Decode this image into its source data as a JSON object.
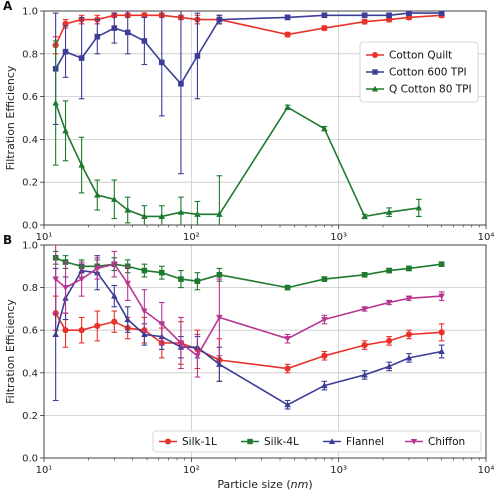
{
  "figure": {
    "xlabel_prefix": "Particle size (",
    "xlabel_unit": "nm",
    "xlabel_suffix": ")"
  },
  "chart_data": [
    {
      "panel": "A",
      "type": "line",
      "ylabel": "Filtration Efficiency",
      "xscale": "log",
      "xlim": [
        10,
        10000
      ],
      "ylim": [
        0,
        1.0
      ],
      "x_ticks": [
        10,
        100,
        1000,
        10000
      ],
      "x_tick_labels": [
        "10¹",
        "10²",
        "10³",
        "10⁴"
      ],
      "y_ticks": [
        0.0,
        0.2,
        0.4,
        0.6,
        0.8,
        1.0
      ],
      "y_tick_labels": [
        "0.0",
        "0.2",
        "0.4",
        "0.6",
        "0.8",
        "1.0"
      ],
      "grid": true,
      "legend_position": "upper-right",
      "series": [
        {
          "name": "Cotton Quilt",
          "color": "#e8322a",
          "marker": "circle",
          "x": [
            12,
            14,
            18,
            23,
            30,
            37,
            48,
            63,
            85,
            110,
            155,
            450,
            800,
            1500,
            2200,
            3000,
            5000
          ],
          "y": [
            0.84,
            0.94,
            0.96,
            0.96,
            0.98,
            0.98,
            0.98,
            0.98,
            0.97,
            0.96,
            0.96,
            0.89,
            0.92,
            0.95,
            0.96,
            0.97,
            0.98
          ],
          "err": [
            0.04,
            0.02,
            0.02,
            0.02,
            0.01,
            0.01,
            0.01,
            0.01,
            0.01,
            0.02,
            0.02,
            0.01,
            0.01,
            0.01,
            0.01,
            0.01,
            0.01
          ]
        },
        {
          "name": "Cotton 600 TPI",
          "color": "#3b3d96",
          "marker": "square",
          "x": [
            12,
            14,
            18,
            23,
            30,
            37,
            48,
            63,
            85,
            110,
            155,
            450,
            800,
            1500,
            2200,
            3000,
            5000
          ],
          "y": [
            0.73,
            0.81,
            0.78,
            0.88,
            0.92,
            0.9,
            0.86,
            0.76,
            0.66,
            0.79,
            0.96,
            0.97,
            0.98,
            0.98,
            0.98,
            0.99,
            0.99
          ],
          "err": [
            0.26,
            0.12,
            0.19,
            0.08,
            0.07,
            0.1,
            0.11,
            0.25,
            0.42,
            0.2,
            0.02,
            0.01,
            0.01,
            0.01,
            0.01,
            0.01,
            0.01
          ]
        },
        {
          "name": "Q Cotton 80 TPI",
          "color": "#1d7a2e",
          "marker": "triangle-up",
          "x": [
            12,
            14,
            18,
            23,
            30,
            37,
            48,
            63,
            85,
            110,
            155,
            450,
            800,
            1500,
            2200,
            3500
          ],
          "y": [
            0.57,
            0.44,
            0.28,
            0.14,
            0.12,
            0.07,
            0.04,
            0.04,
            0.06,
            0.05,
            0.05,
            0.55,
            0.45,
            0.04,
            0.06,
            0.08
          ],
          "err": [
            0.29,
            0.14,
            0.13,
            0.07,
            0.09,
            0.06,
            0.05,
            0.05,
            0.07,
            0.06,
            0.18,
            0.01,
            0.01,
            0.01,
            0.02,
            0.04
          ]
        }
      ]
    },
    {
      "panel": "B",
      "type": "line",
      "ylabel": "Filtration Efficiency",
      "xlabel": "Particle size (nm)",
      "xscale": "log",
      "xlim": [
        10,
        10000
      ],
      "ylim": [
        0,
        1.0
      ],
      "x_ticks": [
        10,
        100,
        1000,
        10000
      ],
      "x_tick_labels": [
        "10¹",
        "10²",
        "10³",
        "10⁴"
      ],
      "y_ticks": [
        0.0,
        0.2,
        0.4,
        0.6,
        0.8,
        1.0
      ],
      "y_tick_labels": [
        "0.0",
        "0.2",
        "0.4",
        "0.6",
        "0.8",
        "1.0"
      ],
      "grid": true,
      "legend_position": "bottom",
      "series": [
        {
          "name": "Silk-1L",
          "color": "#e8322a",
          "marker": "circle",
          "x": [
            12,
            14,
            18,
            23,
            30,
            37,
            48,
            63,
            85,
            110,
            155,
            450,
            800,
            1500,
            2200,
            3000,
            5000
          ],
          "y": [
            0.68,
            0.6,
            0.6,
            0.62,
            0.64,
            0.61,
            0.6,
            0.54,
            0.54,
            0.51,
            0.46,
            0.42,
            0.48,
            0.53,
            0.55,
            0.58,
            0.59
          ],
          "err": [
            0.08,
            0.08,
            0.06,
            0.07,
            0.05,
            0.05,
            0.06,
            0.07,
            0.1,
            0.09,
            0.1,
            0.02,
            0.02,
            0.02,
            0.02,
            0.02,
            0.04
          ]
        },
        {
          "name": "Silk-4L",
          "color": "#1d7a2e",
          "marker": "square",
          "x": [
            12,
            14,
            18,
            23,
            30,
            37,
            48,
            63,
            85,
            110,
            155,
            450,
            800,
            1500,
            2200,
            3000,
            5000
          ],
          "y": [
            0.94,
            0.92,
            0.9,
            0.9,
            0.91,
            0.9,
            0.88,
            0.87,
            0.84,
            0.83,
            0.86,
            0.8,
            0.84,
            0.86,
            0.88,
            0.89,
            0.91
          ],
          "err": [
            0.03,
            0.03,
            0.03,
            0.03,
            0.03,
            0.03,
            0.03,
            0.03,
            0.04,
            0.04,
            0.03,
            0.01,
            0.01,
            0.01,
            0.01,
            0.01,
            0.01
          ]
        },
        {
          "name": "Flannel",
          "color": "#3b3d96",
          "marker": "triangle-up",
          "x": [
            12,
            14,
            18,
            23,
            30,
            37,
            48,
            63,
            85,
            110,
            155,
            450,
            800,
            1500,
            2200,
            3000,
            5000
          ],
          "y": [
            0.58,
            0.75,
            0.88,
            0.87,
            0.76,
            0.65,
            0.58,
            0.57,
            0.52,
            0.52,
            0.44,
            0.25,
            0.34,
            0.39,
            0.43,
            0.47,
            0.5
          ],
          "err": [
            0.31,
            0.1,
            0.03,
            0.08,
            0.05,
            0.06,
            0.05,
            0.06,
            0.05,
            0.05,
            0.08,
            0.02,
            0.02,
            0.02,
            0.02,
            0.02,
            0.03
          ]
        },
        {
          "name": "Chiffon",
          "color": "#b83592",
          "marker": "triangle-down",
          "x": [
            12,
            14,
            18,
            23,
            30,
            37,
            48,
            63,
            85,
            110,
            155,
            450,
            800,
            1500,
            2200,
            3000,
            5000
          ],
          "y": [
            0.84,
            0.8,
            0.84,
            0.89,
            0.91,
            0.82,
            0.69,
            0.63,
            0.54,
            0.48,
            0.66,
            0.56,
            0.65,
            0.7,
            0.73,
            0.75,
            0.76
          ],
          "err": [
            0.16,
            0.12,
            0.08,
            0.05,
            0.06,
            0.08,
            0.1,
            0.1,
            0.12,
            0.1,
            0.18,
            0.02,
            0.02,
            0.01,
            0.01,
            0.01,
            0.02
          ]
        }
      ]
    }
  ]
}
